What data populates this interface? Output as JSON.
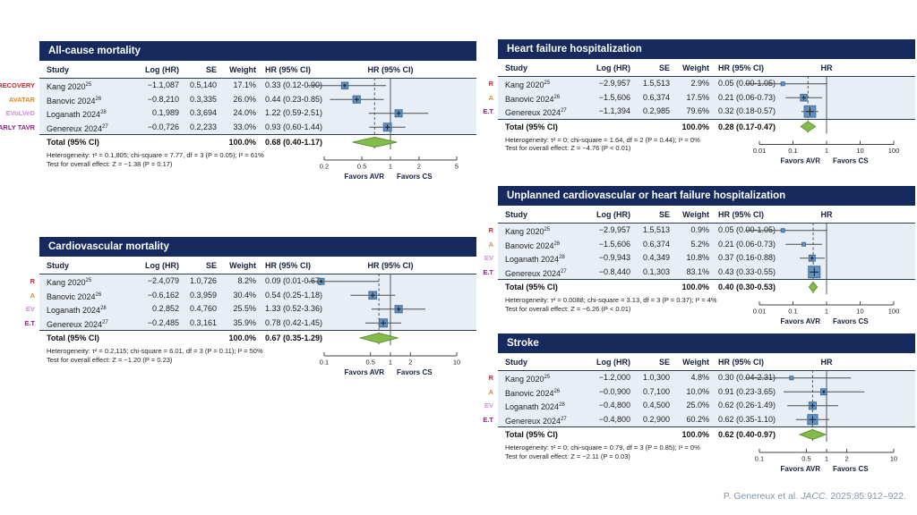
{
  "citation": {
    "prefix": "P. Genereux et al. ",
    "journal": "JACC",
    "suffix": ". 2025;85:912–922.",
    "color": "#8296ac"
  },
  "colors": {
    "panel_header_bg": "#172a5e",
    "panel_header_text": "#ffffff",
    "row_shade": "#e8eef6",
    "rule": "#2b3a55",
    "ci_line": "#4d4d4d",
    "axis": "#444444",
    "square_fill": "#6392c0",
    "square_border": "#3e6ea3",
    "marker_cross": "#1b1b1b",
    "diamond_fill": "#85bb4a",
    "diamond_border": "#5f9431",
    "null_line": "#555555",
    "pooled_line": "#555555",
    "trial_tags": {
      "RECOVERY": "#c42a33",
      "AVATAR": "#e0862e",
      "EVoLVeD": "#cf8fd8",
      "EARLY TAVR": "#8e1f85",
      "R": "#c42a33",
      "A": "#e0862e",
      "EV": "#cf8fd8",
      "E.T": "#8e1f85"
    }
  },
  "columns": {
    "study": "Study",
    "loghr": "Log (HR)",
    "se": "SE",
    "weight": "Weight",
    "hrci": "HR (95% CI)"
  },
  "labels": {
    "total": "Total (95% CI)",
    "total_weight": "100.0%",
    "favors_left": "Favors AVR",
    "favors_right": "Favors CS"
  },
  "chart_data": [
    {
      "id": "all_cause_mortality",
      "type": "forest",
      "title": "All-cause mortality",
      "plot_header": "HR (95% CI)",
      "axis": {
        "scale": "log",
        "min": 0.2,
        "max": 5,
        "ticks": [
          0.2,
          0.5,
          1,
          2,
          5
        ],
        "tick_labels": [
          "0.2",
          "0.5",
          "1",
          "2",
          "5"
        ]
      },
      "studies": [
        {
          "tag": "RECOVERY",
          "study": "Kang 2020",
          "ref": "25",
          "log_hr": "−1.1,087",
          "se": "0.5,140",
          "weight": "17.1%",
          "weight_value": 17.1,
          "hr_ci": "0.33 (0.12-0.90)",
          "hr": 0.33,
          "ci_low": 0.12,
          "ci_high": 0.9
        },
        {
          "tag": "AVATAR",
          "study": "Banovic 2024",
          "ref": "26",
          "log_hr": "−0.8,210",
          "se": "0.3,335",
          "weight": "26.0%",
          "weight_value": 26.0,
          "hr_ci": "0.44 (0.23-0.85)",
          "hr": 0.44,
          "ci_low": 0.23,
          "ci_high": 0.85
        },
        {
          "tag": "EVoLVeD",
          "study": "Loganath 2024",
          "ref": "28",
          "log_hr": "0.1,989",
          "se": "0.3,694",
          "weight": "24.0%",
          "weight_value": 24.0,
          "hr_ci": "1.22 (0.59-2.51)",
          "hr": 1.22,
          "ci_low": 0.59,
          "ci_high": 2.51
        },
        {
          "tag": "EARLY TAVR",
          "study": "Genereux 2024",
          "ref": "27",
          "log_hr": "−0.0,726",
          "se": "0.2,233",
          "weight": "33.0%",
          "weight_value": 33.0,
          "hr_ci": "0.93 (0.60-1.44)",
          "hr": 0.93,
          "ci_low": 0.6,
          "ci_high": 1.44
        }
      ],
      "total": {
        "hr_ci": "0.68 (0.40-1.17)",
        "hr": 0.68,
        "ci_low": 0.4,
        "ci_high": 1.17
      },
      "heterogeneity": "Heterogeneity: τ² = 0.1,805; chi-square = 7.77, df = 3 (P = 0.05); I² = 61%",
      "overall_effect": "Test for overall effect: Z = −1.38 (P = 0.17)"
    },
    {
      "id": "cardiovascular_mortality",
      "type": "forest",
      "title": "Cardiovascular mortality",
      "plot_header": "HR (95% CI)",
      "axis": {
        "scale": "log",
        "min": 0.1,
        "max": 10,
        "ticks": [
          0.1,
          0.5,
          1,
          2,
          10
        ],
        "tick_labels": [
          "0.1",
          "0.5",
          "1",
          "2",
          "10"
        ]
      },
      "studies": [
        {
          "tag": "R",
          "study": "Kang 2020",
          "ref": "25",
          "log_hr": "−2.4,079",
          "se": "1.0,726",
          "weight": "8.2%",
          "weight_value": 8.2,
          "hr_ci": "0.09 (0.01-0.67)",
          "hr": 0.09,
          "ci_low": 0.01,
          "ci_high": 0.67
        },
        {
          "tag": "A",
          "study": "Banovic 2024",
          "ref": "26",
          "log_hr": "−0.6,162",
          "se": "0.3,959",
          "weight": "30.4%",
          "weight_value": 30.4,
          "hr_ci": "0.54 (0.25-1.18)",
          "hr": 0.54,
          "ci_low": 0.25,
          "ci_high": 1.18
        },
        {
          "tag": "EV",
          "study": "Loganath 2024",
          "ref": "28",
          "log_hr": "0.2,852",
          "se": "0.4,760",
          "weight": "25.5%",
          "weight_value": 25.5,
          "hr_ci": "1.33 (0.52-3.36)",
          "hr": 1.33,
          "ci_low": 0.52,
          "ci_high": 3.36
        },
        {
          "tag": "E.T",
          "study": "Genereux 2024",
          "ref": "27",
          "log_hr": "−0.2,485",
          "se": "0.3,161",
          "weight": "35.9%",
          "weight_value": 35.9,
          "hr_ci": "0.78 (0.42-1.45)",
          "hr": 0.78,
          "ci_low": 0.42,
          "ci_high": 1.45
        }
      ],
      "total": {
        "hr_ci": "0.67 (0.35-1.29)",
        "hr": 0.67,
        "ci_low": 0.35,
        "ci_high": 1.29
      },
      "heterogeneity": "Heterogeneity: τ² = 0.2,115; chi-square = 6.01, df = 3 (P = 0.11); I² = 50%",
      "overall_effect": "Test for overall effect: Z = −1.20 (P = 0.23)"
    },
    {
      "id": "heart_failure_hospitalization",
      "type": "forest",
      "title": "Heart failure hospitalization",
      "plot_header": "HR",
      "axis": {
        "scale": "log",
        "min": 0.01,
        "max": 100,
        "ticks": [
          0.01,
          0.1,
          1,
          10,
          100
        ],
        "tick_labels": [
          "0.01",
          "0.1",
          "1",
          "10",
          "100"
        ]
      },
      "studies": [
        {
          "tag": "R",
          "study": "Kang 2020",
          "ref": "25",
          "log_hr": "−2.9,957",
          "se": "1.5,513",
          "weight": "2.9%",
          "weight_value": 2.9,
          "hr_ci": "0.05 (0.00-1.05)",
          "hr": 0.05,
          "ci_low": 0.0,
          "ci_high": 1.05
        },
        {
          "tag": "A",
          "study": "Banovic 2024",
          "ref": "26",
          "log_hr": "−1.5,606",
          "se": "0.6,374",
          "weight": "17.5%",
          "weight_value": 17.5,
          "hr_ci": "0.21 (0.06-0.73)",
          "hr": 0.21,
          "ci_low": 0.06,
          "ci_high": 0.73
        },
        {
          "tag": "E.T",
          "study": "Genereux 2024",
          "ref": "27",
          "log_hr": "−1.1,394",
          "se": "0.2,985",
          "weight": "79.6%",
          "weight_value": 79.6,
          "hr_ci": "0.32 (0.18-0.57)",
          "hr": 0.32,
          "ci_low": 0.18,
          "ci_high": 0.57
        }
      ],
      "total": {
        "hr_ci": "0.28 (0.17-0.47)",
        "hr": 0.28,
        "ci_low": 0.17,
        "ci_high": 0.47
      },
      "heterogeneity": "Heterogeneity: τ² = 0; chi-square = 1.64, df = 2 (P = 0.44); I² = 0%",
      "overall_effect": "Test for overall effect: Z = −4.76 (P < 0.01)"
    },
    {
      "id": "unplanned_cv_hf_hospitalization",
      "type": "forest",
      "title": "Unplanned cardiovascular or heart failure hospitalization",
      "plot_header": "HR",
      "axis": {
        "scale": "log",
        "min": 0.01,
        "max": 100,
        "ticks": [
          0.01,
          0.1,
          1,
          10,
          100
        ],
        "tick_labels": [
          "0.01",
          "0.1",
          "1",
          "10",
          "100"
        ]
      },
      "studies": [
        {
          "tag": "R",
          "study": "Kang 2020",
          "ref": "25",
          "log_hr": "−2.9,957",
          "se": "1.5,513",
          "weight": "0.9%",
          "weight_value": 0.9,
          "hr_ci": "0.05 (0.00-1.05)",
          "hr": 0.05,
          "ci_low": 0.0,
          "ci_high": 1.05
        },
        {
          "tag": "A",
          "study": "Banovic 2024",
          "ref": "26",
          "log_hr": "−1.5,606",
          "se": "0.6,374",
          "weight": "5.2%",
          "weight_value": 5.2,
          "hr_ci": "0.21 (0.06-0.73)",
          "hr": 0.21,
          "ci_low": 0.06,
          "ci_high": 0.73
        },
        {
          "tag": "EV",
          "study": "Loganath 2024",
          "ref": "28",
          "log_hr": "−0.9,943",
          "se": "0.4,349",
          "weight": "10.8%",
          "weight_value": 10.8,
          "hr_ci": "0.37 (0.16-0.88)",
          "hr": 0.37,
          "ci_low": 0.16,
          "ci_high": 0.88
        },
        {
          "tag": "E.T",
          "study": "Genereux 2024",
          "ref": "27",
          "log_hr": "−0.8,440",
          "se": "0.1,303",
          "weight": "83.1%",
          "weight_value": 83.1,
          "hr_ci": "0.43 (0.33-0.55)",
          "hr": 0.43,
          "ci_low": 0.33,
          "ci_high": 0.55
        }
      ],
      "total": {
        "hr_ci": "0.40 (0.30-0.53)",
        "hr": 0.4,
        "ci_low": 0.3,
        "ci_high": 0.53
      },
      "heterogeneity": "Heterogeneity: τ² = 0.0088; chi-square = 3.13, df = 3 (P = 0.37); I² = 4%",
      "overall_effect": "Test for overall effect: Z = −6.26 (P < 0.01)"
    },
    {
      "id": "stroke",
      "type": "forest",
      "title": "Stroke",
      "plot_header": "HR",
      "axis": {
        "scale": "log",
        "min": 0.1,
        "max": 10,
        "ticks": [
          0.1,
          0.5,
          1,
          2,
          10
        ],
        "tick_labels": [
          "0.1",
          "0.5",
          "1",
          "2",
          "10"
        ]
      },
      "studies": [
        {
          "tag": "R",
          "study": "Kang 2020",
          "ref": "25",
          "log_hr": "−1.2,000",
          "se": "1.0,300",
          "weight": "4.8%",
          "weight_value": 4.8,
          "hr_ci": "0.30 (0.04-2.31)",
          "hr": 0.3,
          "ci_low": 0.04,
          "ci_high": 2.31
        },
        {
          "tag": "A",
          "study": "Banovic 2024",
          "ref": "26",
          "log_hr": "−0.0,900",
          "se": "0.7,100",
          "weight": "10.0%",
          "weight_value": 10.0,
          "hr_ci": "0.91 (0.23-3.65)",
          "hr": 0.91,
          "ci_low": 0.23,
          "ci_high": 3.65
        },
        {
          "tag": "EV",
          "study": "Loganath 2024",
          "ref": "28",
          "log_hr": "−0.4,800",
          "se": "0.4,500",
          "weight": "25.0%",
          "weight_value": 25.0,
          "hr_ci": "0.62 (0.26-1.49)",
          "hr": 0.62,
          "ci_low": 0.26,
          "ci_high": 1.49
        },
        {
          "tag": "E.T",
          "study": "Genereux 2024",
          "ref": "27",
          "log_hr": "−0.4,800",
          "se": "0.2,900",
          "weight": "60.2%",
          "weight_value": 60.2,
          "hr_ci": "0.62 (0.35-1.10)",
          "hr": 0.62,
          "ci_low": 0.35,
          "ci_high": 1.1
        }
      ],
      "total": {
        "hr_ci": "0.62 (0.40-0.97)",
        "hr": 0.62,
        "ci_low": 0.4,
        "ci_high": 0.97
      },
      "heterogeneity": "Heterogeneity: τ² = 0; chi-square = 0.79, df = 3 (P = 0.85); I² = 0%",
      "overall_effect": "Test for overall effect: Z = −2.11 (P = 0.03)"
    }
  ]
}
